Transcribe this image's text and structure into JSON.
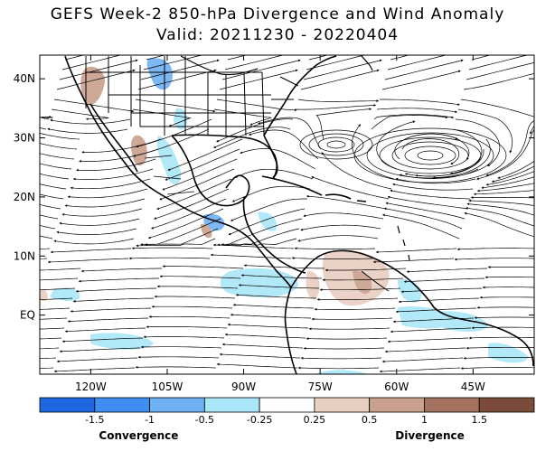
{
  "title_line1": "GEFS Week-2 850-hPa Divergence and Wind Anomaly",
  "title_line2": "Valid: 20211230 - 20220404",
  "map": {
    "lon_labels": [
      "120W",
      "105W",
      "90W",
      "75W",
      "60W",
      "45W"
    ],
    "lon_values": [
      -120,
      -105,
      -90,
      -75,
      -60,
      -45
    ],
    "lat_labels": [
      "40N",
      "30N",
      "20N",
      "10N",
      "EQ"
    ],
    "lat_values": [
      40,
      30,
      20,
      10,
      0
    ],
    "lon_range": [
      -130,
      -33
    ],
    "lat_range": [
      -10,
      44
    ]
  },
  "colorbar": {
    "colors": [
      "#1f67e0",
      "#3e8ef0",
      "#6fb1f5",
      "#a9e7f8",
      "#ffffff",
      "#e8cfc0",
      "#c9a08d",
      "#a2715f",
      "#7a4b3b"
    ],
    "tick_labels": [
      "-1.5",
      "-1",
      "-0.5",
      "-0.25",
      "0.25",
      "0.5",
      "1",
      "1.5"
    ],
    "left_label": "Convergence",
    "right_label": "Divergence"
  }
}
